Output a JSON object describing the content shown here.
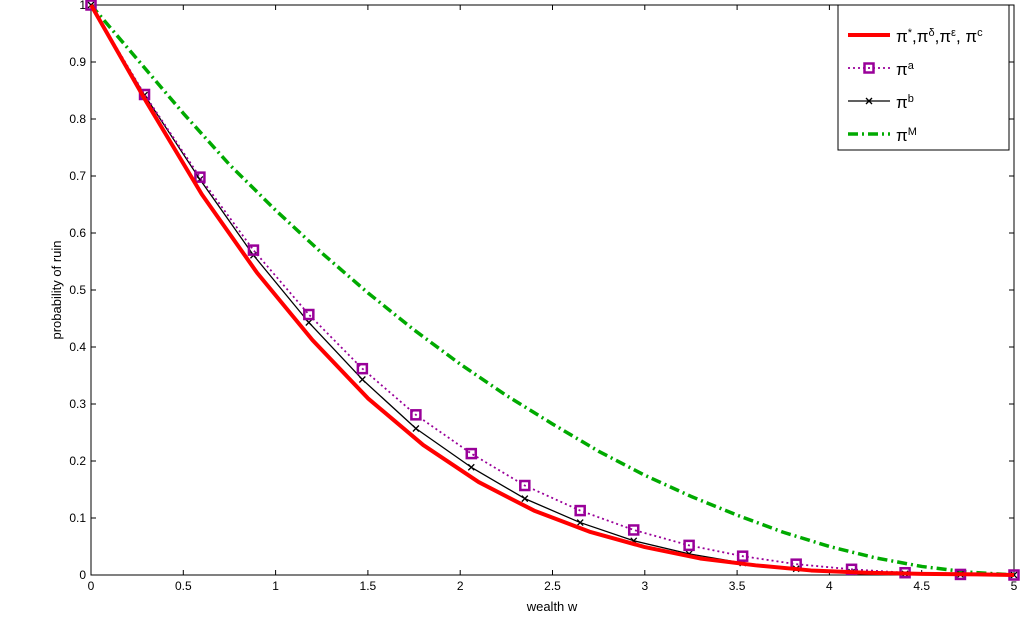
{
  "chart_data": {
    "type": "line",
    "title": "",
    "xlabel": "wealth w",
    "ylabel": "probability of ruin",
    "xlim": [
      0,
      5
    ],
    "ylim": [
      0,
      1
    ],
    "xticks": [
      0,
      0.5,
      1,
      1.5,
      2,
      2.5,
      3,
      3.5,
      4,
      4.5,
      5
    ],
    "xtick_labels": [
      "0",
      "0.5",
      "1",
      "1.5",
      "2",
      "2.5",
      "3",
      "3.5",
      "4",
      "4.5",
      "5"
    ],
    "yticks": [
      0,
      0.1,
      0.2,
      0.3,
      0.4,
      0.5,
      0.6,
      0.7,
      0.8,
      0.9,
      1
    ],
    "ytick_labels": [
      "0",
      "0.1",
      "0.2",
      "0.3",
      "0.4",
      "0.5",
      "0.6",
      "0.7",
      "0.8",
      "0.9",
      "1"
    ],
    "grid": false,
    "legend_position": "top-right",
    "series": [
      {
        "name": "π*,πδ,πε, πc",
        "legend": {
          "base": [
            [
              "π",
              "*"
            ],
            [
              ",π",
              "δ"
            ],
            [
              ",π",
              "ε"
            ],
            [
              ", π",
              "c"
            ]
          ]
        },
        "color": "#ff0000",
        "style": "solid",
        "marker": "none",
        "x": [
          0,
          0.3,
          0.6,
          0.9,
          1.2,
          1.5,
          1.8,
          2.1,
          2.4,
          2.7,
          3.0,
          3.3,
          3.6,
          3.9,
          4.2,
          4.5,
          4.8,
          5.0
        ],
        "y": [
          1.0,
          0.83,
          0.668,
          0.53,
          0.412,
          0.31,
          0.228,
          0.163,
          0.113,
          0.076,
          0.049,
          0.029,
          0.017,
          0.008,
          0.004,
          0.002,
          0.001,
          0.0
        ]
      },
      {
        "name": "πa",
        "legend": {
          "base": [
            [
              "π",
              "a"
            ]
          ]
        },
        "color": "#990099",
        "style": "dotted",
        "marker": "square",
        "x": [
          0,
          0.29,
          0.59,
          0.88,
          1.18,
          1.47,
          1.76,
          2.06,
          2.35,
          2.65,
          2.94,
          3.24,
          3.53,
          3.82,
          4.12,
          4.41,
          4.71,
          5.0
        ],
        "y": [
          1.0,
          0.843,
          0.698,
          0.57,
          0.457,
          0.362,
          0.281,
          0.213,
          0.157,
          0.113,
          0.079,
          0.052,
          0.033,
          0.019,
          0.01,
          0.004,
          0.001,
          0.0
        ]
      },
      {
        "name": "πb",
        "legend": {
          "base": [
            [
              "π",
              "b"
            ]
          ]
        },
        "color": "#000000",
        "style": "solid",
        "marker": "x",
        "x": [
          0,
          0.29,
          0.59,
          0.88,
          1.18,
          1.47,
          1.76,
          2.06,
          2.35,
          2.65,
          2.94,
          3.24,
          3.53,
          3.82,
          4.12,
          4.41,
          4.71,
          5.0
        ],
        "y": [
          1.0,
          0.842,
          0.694,
          0.561,
          0.443,
          0.343,
          0.257,
          0.189,
          0.134,
          0.092,
          0.06,
          0.037,
          0.021,
          0.011,
          0.005,
          0.002,
          0.001,
          0.0
        ]
      },
      {
        "name": "πM",
        "legend": {
          "base": [
            [
              "π",
              "M"
            ]
          ]
        },
        "color": "#00aa00",
        "style": "dashdot",
        "marker": "none",
        "x": [
          0,
          0.25,
          0.5,
          0.75,
          1.0,
          1.25,
          1.5,
          1.75,
          2.0,
          2.25,
          2.5,
          2.75,
          3.0,
          3.25,
          3.5,
          3.75,
          4.0,
          4.25,
          4.5,
          4.75,
          5.0
        ],
        "y": [
          1.0,
          0.905,
          0.81,
          0.72,
          0.64,
          0.565,
          0.495,
          0.43,
          0.37,
          0.315,
          0.265,
          0.217,
          0.175,
          0.138,
          0.105,
          0.075,
          0.05,
          0.03,
          0.015,
          0.005,
          0.0
        ]
      }
    ]
  }
}
